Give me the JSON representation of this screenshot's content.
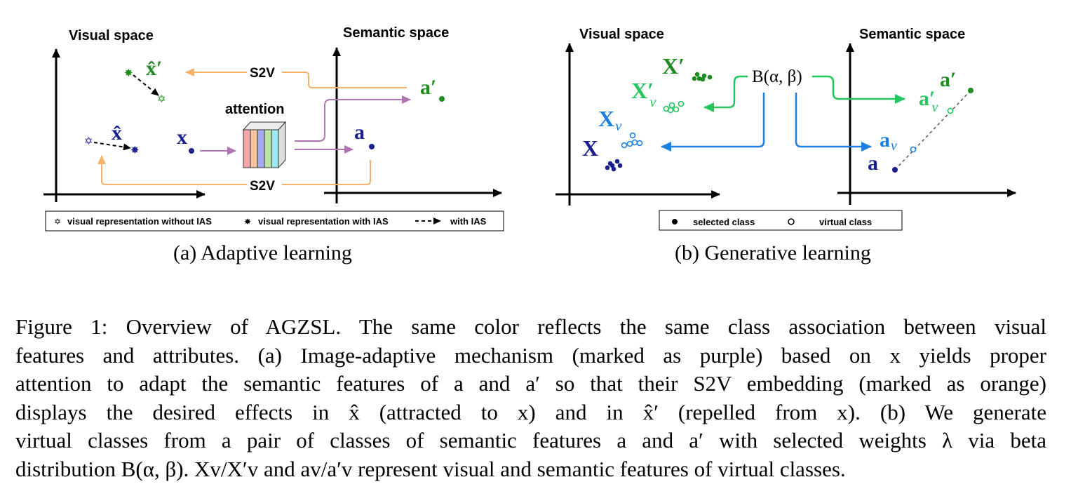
{
  "colors": {
    "green": "#1e8c1e",
    "navy": "#1a1f8f",
    "blue": "#1d7fe0",
    "lightgreen": "#22c55e",
    "orange": "#f6b26b",
    "purple": "#b074b0",
    "black": "#000000"
  },
  "panel_a": {
    "visual_space_label": "Visual space",
    "semantic_space_label": "Semantic space",
    "s2v_top": "S2V",
    "s2v_bottom": "S2V",
    "attention_label": "attention",
    "x_hat_prime": "x̂′",
    "x_hat": "x̂",
    "x": "x",
    "a": "a",
    "a_prime": "a′",
    "legend": {
      "item1": "visual representation without IAS",
      "item2": "visual representation with IAS",
      "item3": "with IAS"
    },
    "caption": "(a)  Adaptive learning"
  },
  "panel_b": {
    "visual_space_label": "Visual space",
    "semantic_space_label": "Semantic space",
    "beta_label": "B(α, β)",
    "X_prime": "X′",
    "X_v_prime": "X′",
    "X_v_prime_sub": "v",
    "X_v": "X",
    "X_v_sub": "v",
    "X": "X",
    "a_prime": "a′",
    "a_v_prime": "a′",
    "a_v_prime_sub": "v",
    "a_v": "a",
    "a_v_sub": "v",
    "a": "a",
    "legend": {
      "item1": "selected class",
      "item2": "virtual class"
    },
    "caption": "(b)  Generative learning"
  },
  "caption_lines": [
    "Figure 1: Overview of AGZSL. The same color reflects the same class association between visual",
    "features and attributes. (a) Image-adaptive mechanism (marked as purple) based on x yields proper",
    "attention to adapt the semantic features of a and a′ so that their S2V embedding (marked as orange)",
    "displays the desired effects in x̂ (attracted to x) and in x̂′ (repelled from x).  (b) We generate",
    "virtual classes from a pair of classes of semantic features a and a′ with selected weights λ via beta",
    "distribution B(α, β). Xv/X′v and av/a′v represent visual and semantic features of virtual classes."
  ]
}
